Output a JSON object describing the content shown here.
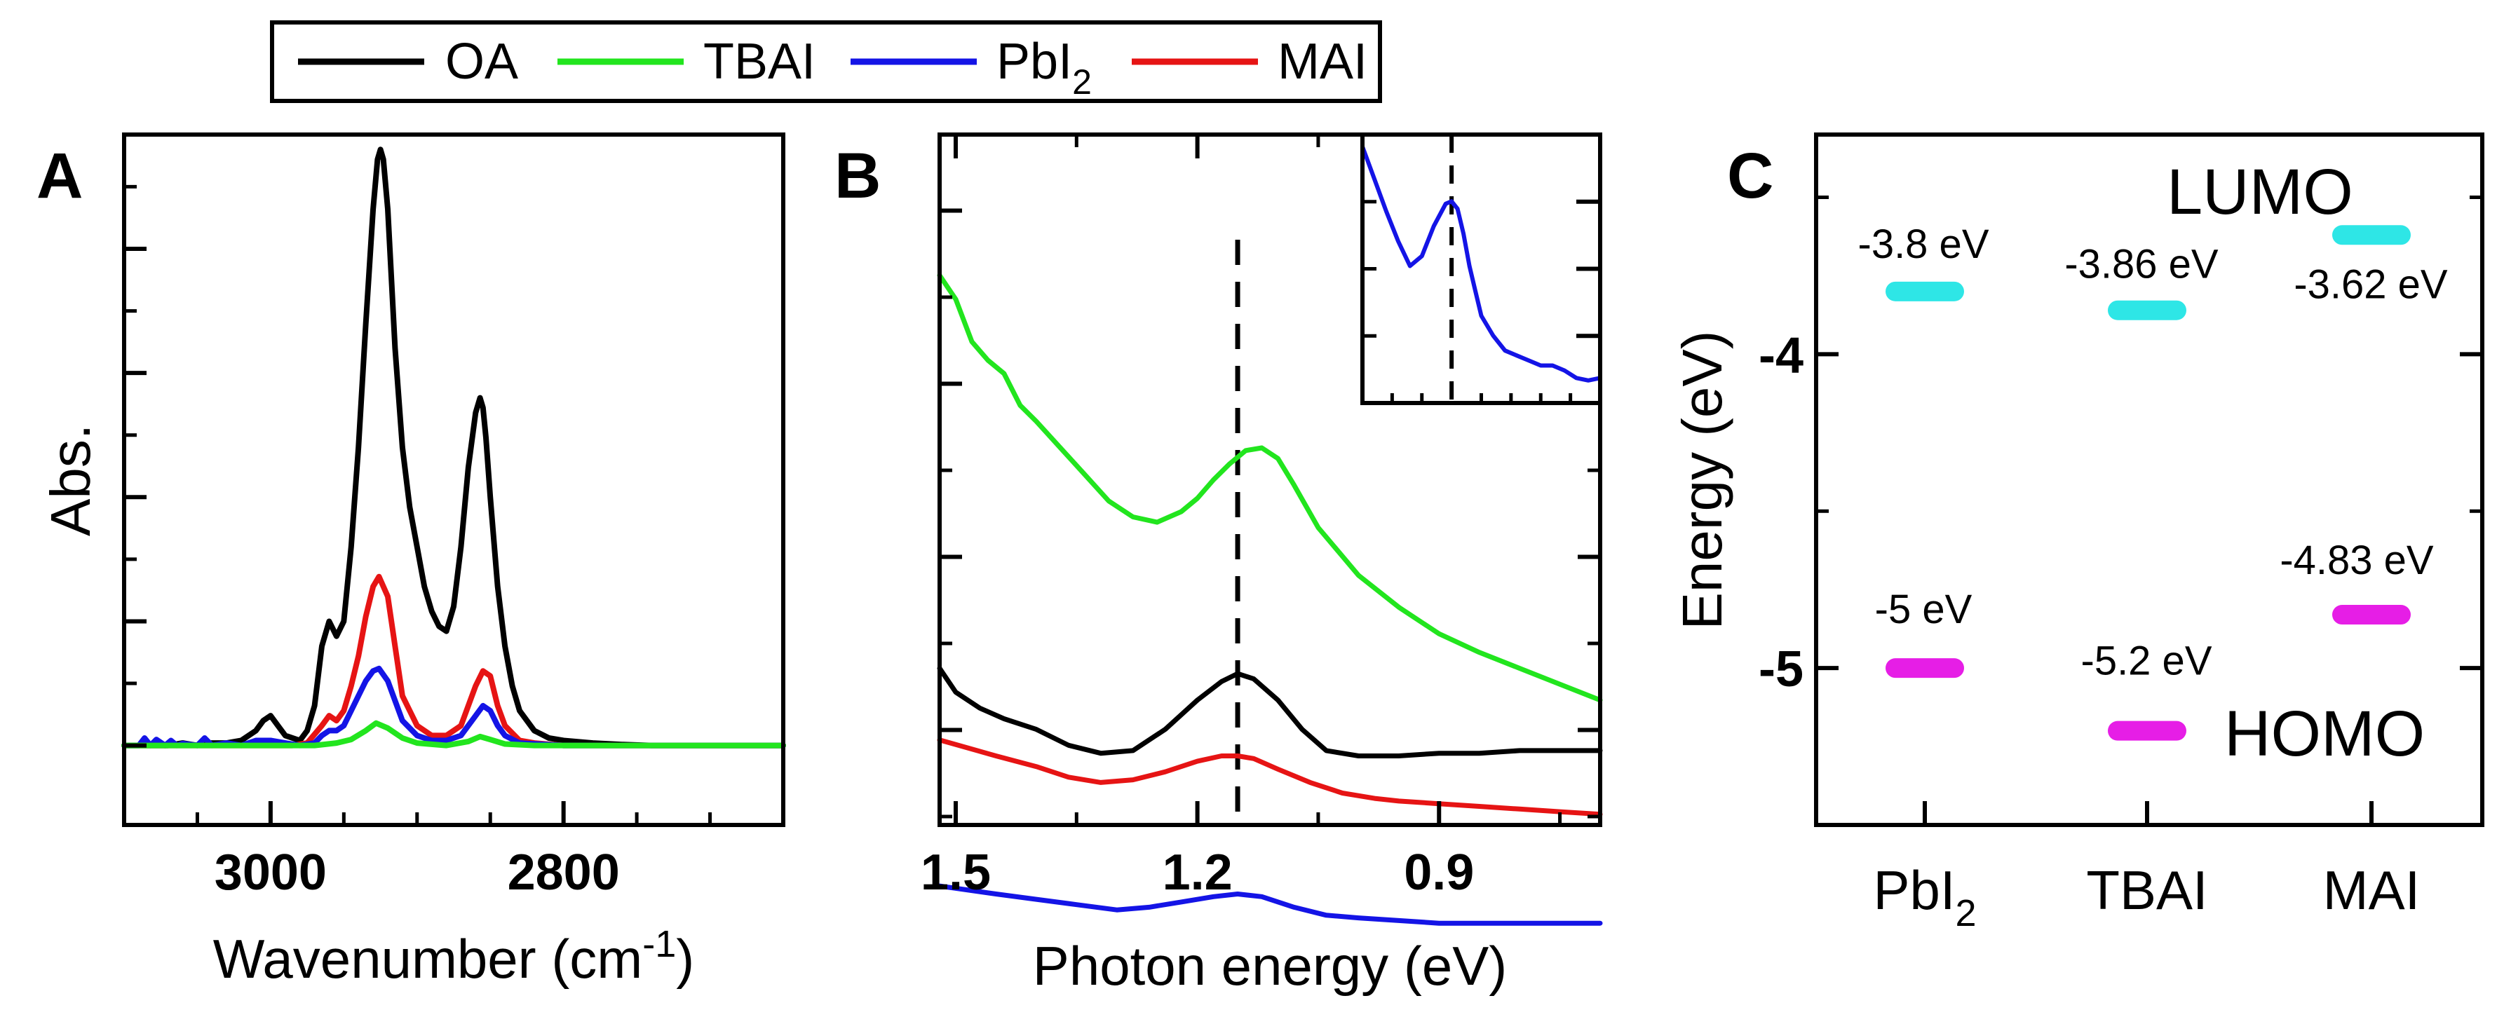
{
  "legend": {
    "entries": [
      {
        "label": "OA",
        "color": "#000000"
      },
      {
        "label": "TBAI",
        "color": "#22e51e"
      },
      {
        "label_main": "PbI",
        "label_sub": "2",
        "color": "#1414e6"
      },
      {
        "label": "MAI",
        "color": "#e61414"
      }
    ]
  },
  "chart_data": [
    {
      "type": "line",
      "panel_label": "A",
      "xlabel_main": "Wavenumber (cm",
      "xlabel_sup": "-1",
      "xlabel_end": ")",
      "ylabel": "Abs.",
      "xlim": [
        3100,
        2650
      ],
      "ylim": [
        -0.16,
        1.23
      ],
      "xticks": [
        {
          "value": 3000,
          "label": "3000"
        },
        {
          "value": 2800,
          "label": "2800"
        }
      ],
      "grid": false,
      "series": [
        {
          "name": "OA",
          "color": "#000000",
          "x": [
            3100,
            3080,
            3070,
            3060,
            3050,
            3040,
            3030,
            3020,
            3010,
            3005,
            3000,
            2995,
            2990,
            2980,
            2975,
            2970,
            2965,
            2960,
            2955,
            2950,
            2945,
            2940,
            2935,
            2930,
            2927,
            2925,
            2923,
            2920,
            2915,
            2910,
            2905,
            2900,
            2895,
            2890,
            2885,
            2880,
            2875,
            2870,
            2865,
            2860,
            2857,
            2855,
            2853,
            2850,
            2845,
            2840,
            2835,
            2830,
            2820,
            2810,
            2800,
            2780,
            2760,
            2740,
            2720,
            2700,
            2680,
            2650
          ],
          "y": [
            0,
            0,
            0,
            0.005,
            0,
            0.005,
            0.005,
            0.01,
            0.03,
            0.05,
            0.06,
            0.04,
            0.02,
            0.01,
            0.03,
            0.08,
            0.2,
            0.25,
            0.22,
            0.25,
            0.4,
            0.6,
            0.85,
            1.08,
            1.18,
            1.2,
            1.18,
            1.08,
            0.8,
            0.6,
            0.48,
            0.4,
            0.32,
            0.27,
            0.24,
            0.23,
            0.28,
            0.4,
            0.56,
            0.67,
            0.7,
            0.68,
            0.62,
            0.5,
            0.32,
            0.2,
            0.12,
            0.07,
            0.03,
            0.015,
            0.01,
            0.005,
            0.002,
            0,
            0,
            0,
            0,
            0
          ]
        },
        {
          "name": "MAI",
          "color": "#e61414",
          "x": [
            3100,
            3000,
            2985,
            2975,
            2965,
            2960,
            2955,
            2950,
            2945,
            2940,
            2935,
            2930,
            2926,
            2920,
            2915,
            2910,
            2900,
            2890,
            2880,
            2870,
            2860,
            2855,
            2850,
            2845,
            2840,
            2830,
            2820,
            2800,
            2700,
            2650
          ],
          "y": [
            0,
            0,
            0,
            0.005,
            0.04,
            0.06,
            0.05,
            0.07,
            0.12,
            0.18,
            0.26,
            0.32,
            0.34,
            0.3,
            0.2,
            0.1,
            0.04,
            0.02,
            0.02,
            0.04,
            0.12,
            0.15,
            0.14,
            0.08,
            0.04,
            0.01,
            0.005,
            0,
            0,
            0
          ]
        },
        {
          "name": "PbI2",
          "color": "#1414e6",
          "x": [
            3100,
            3090,
            3086,
            3082,
            3078,
            3072,
            3068,
            3064,
            3060,
            3050,
            3045,
            3040,
            3030,
            3020,
            3010,
            3000,
            2990,
            2980,
            2970,
            2965,
            2960,
            2955,
            2950,
            2945,
            2940,
            2935,
            2930,
            2926,
            2920,
            2915,
            2910,
            2900,
            2890,
            2880,
            2870,
            2860,
            2855,
            2850,
            2845,
            2840,
            2830,
            2800,
            2700,
            2650
          ],
          "y": [
            0,
            0,
            0.015,
            0,
            0.012,
            0,
            0.01,
            0,
            0.004,
            0,
            0.015,
            0,
            0.005,
            0,
            0.01,
            0.01,
            0.005,
            0,
            0.005,
            0.02,
            0.03,
            0.03,
            0.04,
            0.07,
            0.1,
            0.13,
            0.15,
            0.155,
            0.13,
            0.09,
            0.05,
            0.02,
            0.01,
            0.01,
            0.02,
            0.06,
            0.08,
            0.07,
            0.04,
            0.02,
            0.005,
            0,
            0,
            0
          ]
        },
        {
          "name": "TBAI",
          "color": "#22e51e",
          "x": [
            3100,
            2990,
            2970,
            2955,
            2945,
            2935,
            2928,
            2920,
            2910,
            2900,
            2880,
            2865,
            2857,
            2850,
            2840,
            2820,
            2700,
            2650
          ],
          "y": [
            0,
            0,
            0,
            0.005,
            0.012,
            0.03,
            0.045,
            0.035,
            0.015,
            0.005,
            0,
            0.008,
            0.018,
            0.012,
            0.003,
            0,
            0,
            0
          ]
        }
      ]
    },
    {
      "type": "line",
      "panel_label": "B",
      "xlabel": "Photon energy (eV)",
      "xlim": [
        1.52,
        0.7
      ],
      "ylim": [
        -0.1,
        2.5
      ],
      "xticks": [
        {
          "value": 1.5,
          "label": "1.5"
        },
        {
          "value": 1.2,
          "label": "1.2"
        },
        {
          "value": 0.9,
          "label": "0.9"
        }
      ],
      "vline": 1.15,
      "series": [
        {
          "name": "TBAI",
          "color": "#22e51e",
          "x": [
            1.52,
            1.5,
            1.48,
            1.46,
            1.44,
            1.42,
            1.4,
            1.37,
            1.34,
            1.31,
            1.28,
            1.25,
            1.22,
            1.2,
            1.18,
            1.16,
            1.14,
            1.12,
            1.1,
            1.08,
            1.05,
            1.0,
            0.95,
            0.9,
            0.85,
            0.8,
            0.75,
            0.7
          ],
          "y": [
            1.97,
            1.88,
            1.72,
            1.65,
            1.6,
            1.48,
            1.42,
            1.32,
            1.22,
            1.12,
            1.06,
            1.04,
            1.08,
            1.13,
            1.2,
            1.26,
            1.31,
            1.32,
            1.28,
            1.18,
            1.02,
            0.84,
            0.72,
            0.62,
            0.55,
            0.49,
            0.43,
            0.37
          ]
        },
        {
          "name": "OA",
          "color": "#000000",
          "x": [
            1.52,
            1.5,
            1.47,
            1.44,
            1.4,
            1.36,
            1.32,
            1.28,
            1.24,
            1.2,
            1.17,
            1.15,
            1.13,
            1.1,
            1.07,
            1.04,
            1.0,
            0.95,
            0.9,
            0.85,
            0.8,
            0.75,
            0.7
          ],
          "y": [
            0.49,
            0.4,
            0.34,
            0.3,
            0.26,
            0.2,
            0.17,
            0.18,
            0.26,
            0.37,
            0.44,
            0.47,
            0.45,
            0.37,
            0.26,
            0.18,
            0.16,
            0.16,
            0.17,
            0.17,
            0.18,
            0.18,
            0.18
          ]
        },
        {
          "name": "MAI",
          "color": "#e61414",
          "x": [
            1.52,
            1.45,
            1.4,
            1.36,
            1.32,
            1.28,
            1.24,
            1.2,
            1.17,
            1.15,
            1.13,
            1.1,
            1.06,
            1.02,
            0.98,
            0.95,
            0.9,
            0.85,
            0.8,
            0.75,
            0.7
          ],
          "y": [
            0.22,
            0.16,
            0.12,
            0.08,
            0.06,
            0.07,
            0.1,
            0.14,
            0.16,
            0.16,
            0.15,
            0.11,
            0.06,
            0.02,
            0.0,
            -0.01,
            -0.02,
            -0.03,
            -0.04,
            -0.05,
            -0.06
          ]
        },
        {
          "name": "PbI2",
          "color": "#1414e6",
          "x": [
            1.52,
            1.45,
            1.4,
            1.35,
            1.3,
            1.26,
            1.22,
            1.18,
            1.15,
            1.12,
            1.08,
            1.04,
            1.0,
            0.95,
            0.9,
            0.85,
            0.8,
            0.75,
            0.7
          ],
          "y": [
            -0.33,
            -0.36,
            -0.38,
            -0.4,
            -0.42,
            -0.41,
            -0.39,
            -0.37,
            -0.36,
            -0.37,
            -0.41,
            -0.44,
            -0.45,
            -0.46,
            -0.47,
            -0.47,
            -0.47,
            -0.47,
            -0.47
          ]
        }
      ],
      "inset": {
        "xlim": [
          1.3,
          0.9
        ],
        "ylim": [
          0,
          1
        ],
        "vline": 1.15,
        "series": [
          {
            "name": "PbI2",
            "color": "#1414e6",
            "x": [
              1.3,
              1.28,
              1.26,
              1.24,
              1.22,
              1.2,
              1.18,
              1.16,
              1.15,
              1.14,
              1.13,
              1.12,
              1.11,
              1.1,
              1.08,
              1.06,
              1.04,
              1.02,
              1.0,
              0.98,
              0.96,
              0.94,
              0.92,
              0.9
            ],
            "y": [
              0.98,
              0.85,
              0.72,
              0.6,
              0.5,
              0.54,
              0.66,
              0.75,
              0.76,
              0.73,
              0.63,
              0.5,
              0.4,
              0.3,
              0.22,
              0.16,
              0.14,
              0.12,
              0.1,
              0.1,
              0.08,
              0.05,
              0.04,
              0.05
            ]
          }
        ]
      }
    },
    {
      "type": "scatter",
      "panel_label": "C",
      "ylabel": "Energy (eV)",
      "ylim": [
        -5.5,
        -3.3
      ],
      "yticks": [
        {
          "value": -4,
          "label": "-4"
        },
        {
          "value": -5,
          "label": "-5"
        }
      ],
      "categories": [
        {
          "label_main": "PbI",
          "label_sub": "2"
        },
        {
          "label_main": "TBAI",
          "label_sub": ""
        },
        {
          "label_main": "MAI",
          "label_sub": ""
        }
      ],
      "lumo_label": "LUMO",
      "homo_label": "HOMO",
      "lumo_color": "#2ee6e6",
      "homo_color": "#e61ee6",
      "lumo": [
        {
          "value": -3.8,
          "label": "-3.8 eV"
        },
        {
          "value": -3.86,
          "label": "-3.86 eV"
        },
        {
          "value": -3.62,
          "label": "-3.62 eV"
        }
      ],
      "homo": [
        {
          "value": -5.0,
          "label": "-5 eV"
        },
        {
          "value": -5.2,
          "label": "-5.2 eV"
        },
        {
          "value": -4.83,
          "label": "-4.83 eV"
        }
      ]
    }
  ]
}
